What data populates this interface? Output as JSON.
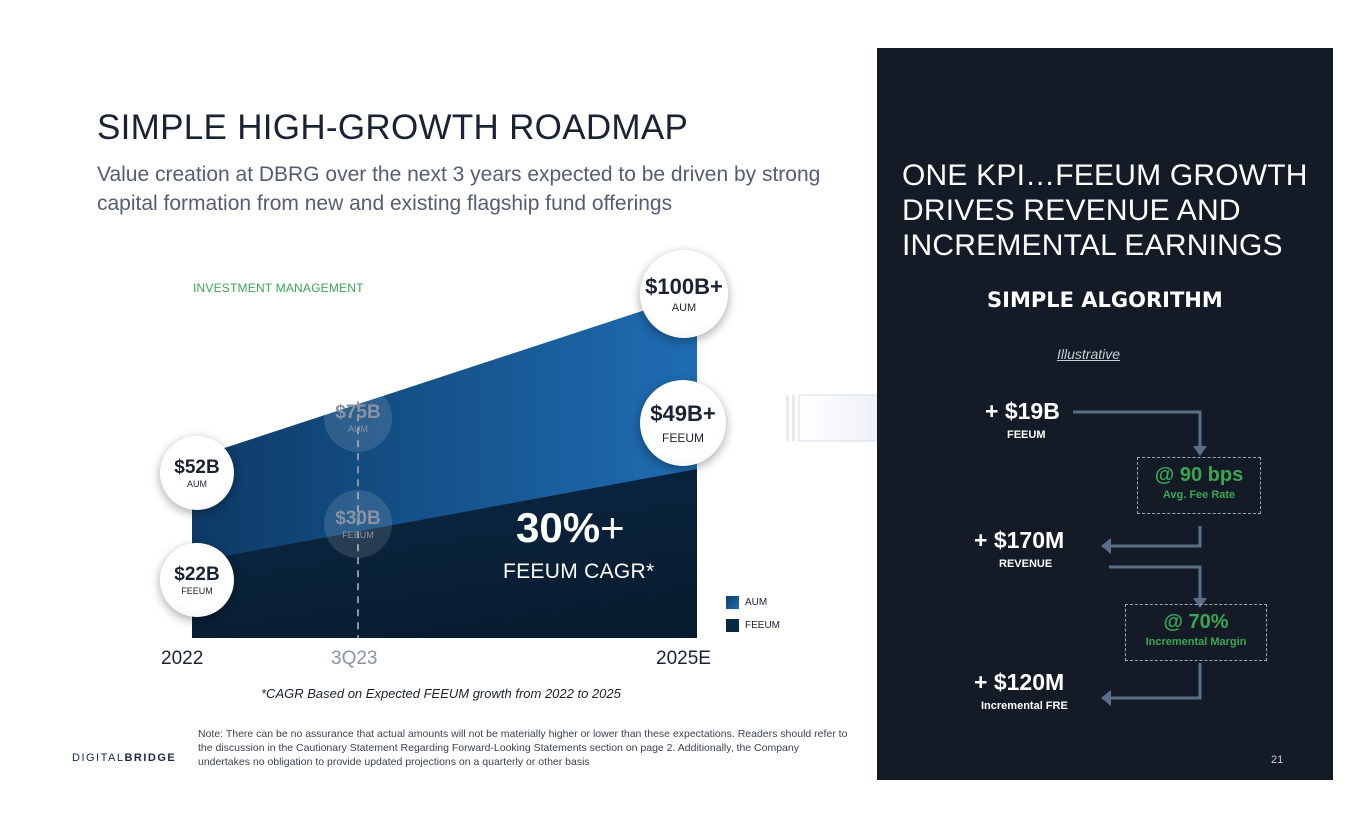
{
  "header": {
    "title": "SIMPLE HIGH-GROWTH ROADMAP",
    "subtitle": "Value creation at DBRG over the next 3 years expected to be driven by strong capital formation from new and existing flagship fund offerings"
  },
  "chart_data": {
    "type": "area",
    "section_label": "INVESTMENT MANAGEMENT",
    "categories": [
      "2022",
      "3Q23",
      "2025E"
    ],
    "series": [
      {
        "name": "AUM",
        "values": [
          52,
          75,
          100
        ],
        "labels": [
          "$52B",
          "$75B",
          "$100B+"
        ],
        "sub": "AUM"
      },
      {
        "name": "FEEUM",
        "values": [
          22,
          30,
          49
        ],
        "labels": [
          "$22B",
          "$30B",
          "$49B+"
        ],
        "sub": "FEEUM"
      }
    ],
    "annotation": {
      "value": "30%",
      "plus": "+",
      "label": "FEEUM CAGR*"
    },
    "footnote": "*CAGR Based on Expected FEEUM growth from 2022 to 2025",
    "colors": {
      "aum": "#1f6db3",
      "feeum": "#0a2840"
    }
  },
  "note": "Note: There can be no assurance that actual amounts will not be materially higher or lower than these expectations.  Readers should refer to the discussion in the Cautionary Statement Regarding Forward-Looking Statements section on page 2. Additionally, the Company undertakes no obligation to provide updated projections on a quarterly or other basis",
  "logo": {
    "part1": "DIGITAL",
    "part2": "BRIDGE"
  },
  "panel": {
    "title": "ONE KPI…FEEUM GROWTH DRIVES REVENUE AND INCREMENTAL EARNINGS",
    "subtitle": "SIMPLE ALGORITHM",
    "illustrative": "Illustrative",
    "steps": [
      {
        "value": "+ $19B",
        "label": "FEEUM"
      },
      {
        "value": "+ $170M",
        "label": "REVENUE"
      },
      {
        "value": "+ $120M",
        "label": "Incremental FRE"
      }
    ],
    "rates": [
      {
        "value": "@ 90 bps",
        "label": "Avg. Fee Rate"
      },
      {
        "value": "@ 70%",
        "label": "Incremental Margin"
      }
    ],
    "page_number": "21",
    "accent": "#3aa655"
  }
}
